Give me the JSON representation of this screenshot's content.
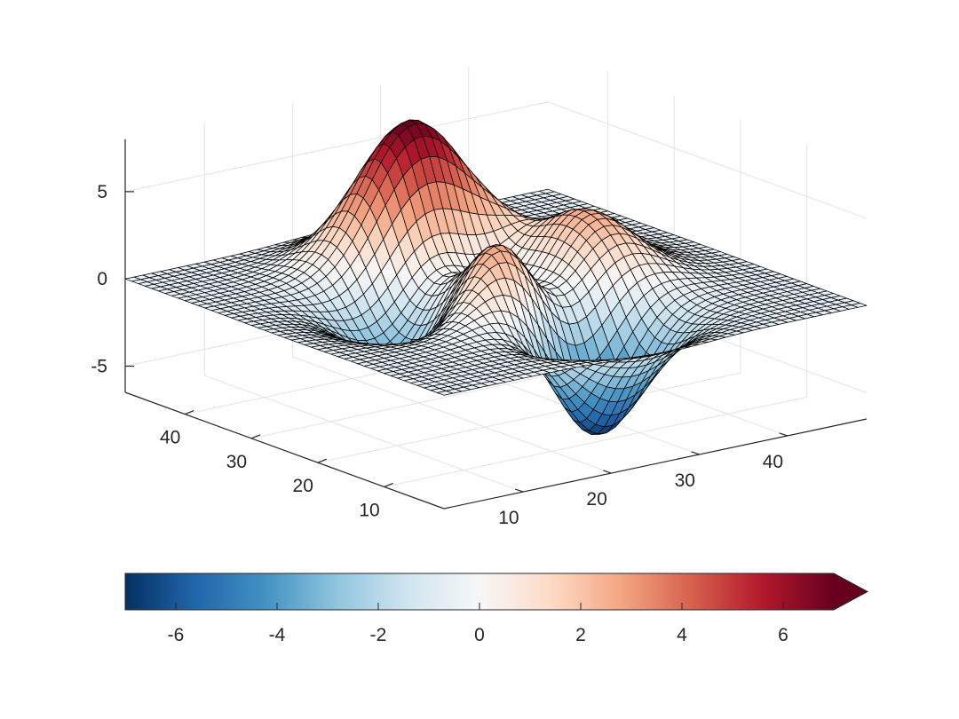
{
  "chart_data": {
    "type": "surface",
    "function": "peaks",
    "grid": true,
    "box": false,
    "mesh": {
      "rows": 49,
      "cols": 49,
      "edge_color": "#000000"
    },
    "xlim": [
      1,
      49
    ],
    "ylim": [
      1,
      49
    ],
    "zlim": [
      -6.5,
      8
    ],
    "zmin": -6.55,
    "zmax": 8.0,
    "xticks": [
      10,
      20,
      30,
      40
    ],
    "xtick_labels": [
      "10",
      "20",
      "30",
      "40"
    ],
    "yticks": [
      10,
      20,
      30,
      40
    ],
    "ytick_labels": [
      "10",
      "20",
      "30",
      "40"
    ],
    "zticks": [
      -5,
      0,
      5
    ],
    "ztick_labels": [
      "-5",
      "0",
      "5"
    ],
    "title": "",
    "xlabel": "",
    "ylabel": "",
    "zlabel": "",
    "colorbar": {
      "location": "southoutside",
      "extend": "max",
      "range": [
        -7,
        7
      ],
      "ticks": [
        -6,
        -4,
        -2,
        0,
        2,
        4,
        6
      ],
      "tick_labels": [
        "-6",
        "-4",
        "-2",
        "0",
        "2",
        "4",
        "6"
      ]
    },
    "colormap": [
      "#053061",
      "#2166ac",
      "#4393c3",
      "#92c5de",
      "#d1e5f0",
      "#f7f7f7",
      "#fddbc7",
      "#f4a582",
      "#d6604d",
      "#b2182b",
      "#67001f"
    ],
    "grid_color": "#e3e3e3",
    "axis_color": "#262626"
  }
}
